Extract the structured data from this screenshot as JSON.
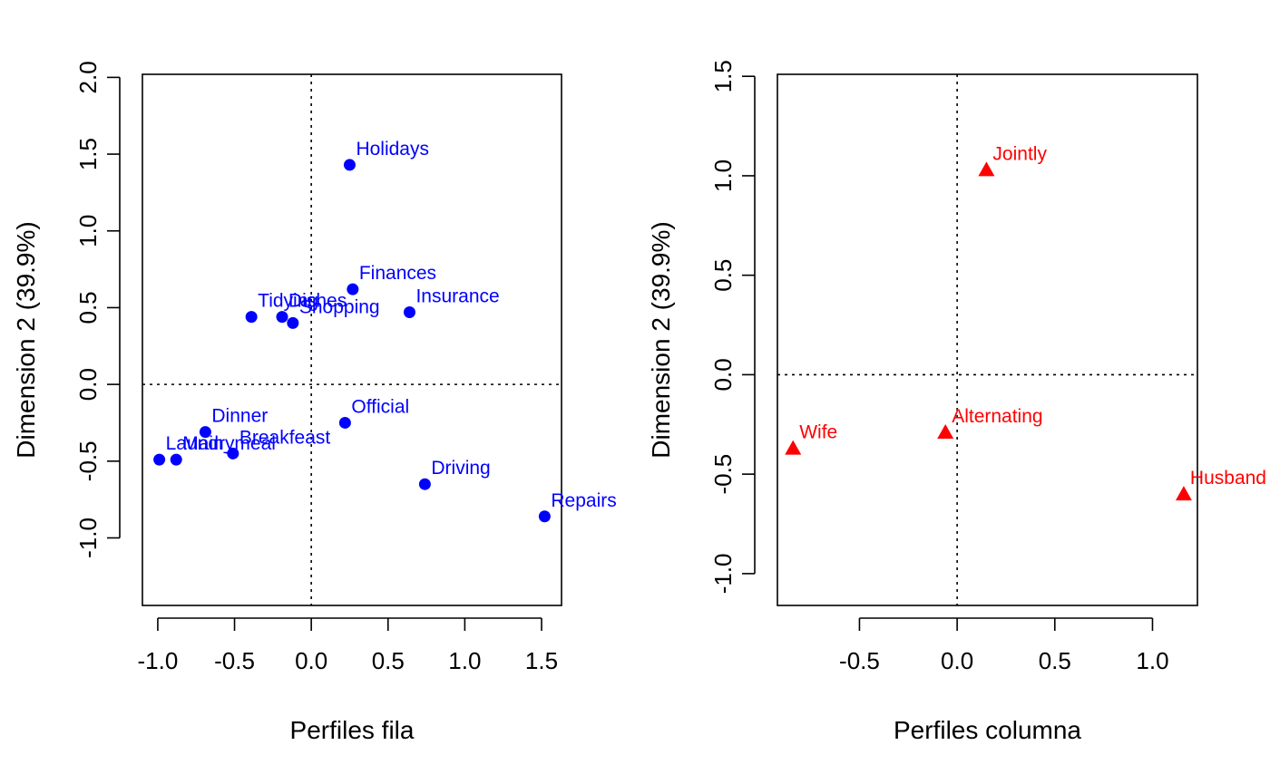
{
  "chart_data": [
    {
      "type": "scatter",
      "xlabel": "Perfiles fila",
      "ylabel": "Dimension 2 (39.9%)",
      "xlim": [
        -1.1,
        1.63
      ],
      "ylim": [
        -1.44,
        2.02
      ],
      "xticks": [
        -1.0,
        -0.5,
        0.0,
        0.5,
        1.0,
        1.5
      ],
      "xtick_labels": [
        "-1.0",
        "-0.5",
        "0.0",
        "0.5",
        "1.0",
        "1.5"
      ],
      "yticks": [
        -1.0,
        -0.5,
        0.0,
        0.5,
        1.0,
        1.5,
        2.0
      ],
      "ytick_labels": [
        "-1.0",
        "-0.5",
        "0.0",
        "0.5",
        "1.0",
        "1.5",
        "2.0"
      ],
      "marker": "circle",
      "color": "#0000FF",
      "reference_lines": {
        "x": 0,
        "y": 0,
        "style": "dotted"
      },
      "points": [
        {
          "label": "Laundry",
          "x": -0.99,
          "y": -0.49
        },
        {
          "label": "Main_meal",
          "x": -0.88,
          "y": -0.49
        },
        {
          "label": "Dinner",
          "x": -0.69,
          "y": -0.31
        },
        {
          "label": "Breakfeast",
          "x": -0.51,
          "y": -0.45
        },
        {
          "label": "Tidying",
          "x": -0.39,
          "y": 0.44
        },
        {
          "label": "Dishes",
          "x": -0.19,
          "y": 0.44
        },
        {
          "label": "Shopping",
          "x": -0.12,
          "y": 0.4
        },
        {
          "label": "Official",
          "x": 0.22,
          "y": -0.25
        },
        {
          "label": "Holidays",
          "x": 0.25,
          "y": 1.43
        },
        {
          "label": "Finances",
          "x": 0.27,
          "y": 0.62
        },
        {
          "label": "Insurance",
          "x": 0.64,
          "y": 0.47
        },
        {
          "label": "Driving",
          "x": 0.74,
          "y": -0.65
        },
        {
          "label": "Repairs",
          "x": 1.52,
          "y": -0.86
        }
      ]
    },
    {
      "type": "scatter",
      "xlabel": "Perfiles columna",
      "ylabel": "Dimension 2 (39.9%)",
      "xlim": [
        -0.92,
        1.23
      ],
      "ylim": [
        -1.16,
        1.51
      ],
      "xticks": [
        -0.5,
        0.0,
        0.5,
        1.0
      ],
      "xtick_labels": [
        "-0.5",
        "0.0",
        "0.5",
        "1.0"
      ],
      "yticks": [
        -1.0,
        -0.5,
        0.0,
        0.5,
        1.0,
        1.5
      ],
      "ytick_labels": [
        "-1.0",
        "-0.5",
        "0.0",
        "0.5",
        "1.0",
        "1.5"
      ],
      "marker": "triangle",
      "color": "#FF0000",
      "reference_lines": {
        "x": 0,
        "y": 0,
        "style": "dotted"
      },
      "points": [
        {
          "label": "Wife",
          "x": -0.84,
          "y": -0.37
        },
        {
          "label": "Alternating",
          "x": -0.06,
          "y": -0.29
        },
        {
          "label": "Jointly",
          "x": 0.15,
          "y": 1.03
        },
        {
          "label": "Husband",
          "x": 1.16,
          "y": -0.6
        }
      ]
    }
  ]
}
